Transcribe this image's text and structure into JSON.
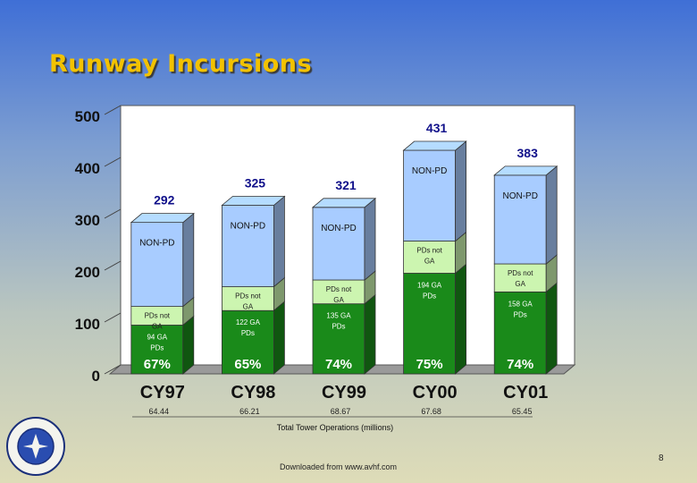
{
  "slide": {
    "title": "Runway Incursions",
    "footer": "Downloaded from www.avhf.com",
    "page_number": "8"
  },
  "colors": {
    "non_pd": "#a8ccff",
    "pd_not_ga": "#ccf5b0",
    "ga_pd": "#1a8a1a",
    "total_label": "#10108a",
    "pct_label": "#ffffff"
  },
  "chart_data": {
    "type": "bar",
    "stacked": true,
    "title": "",
    "ylabel": "",
    "xlabel": "Total Tower Operations (millions)",
    "ylim": [
      0,
      500
    ],
    "yticks": [
      0,
      100,
      200,
      300,
      400,
      500
    ],
    "grid": false,
    "categories": [
      "CY97",
      "CY98",
      "CY99",
      "CY00",
      "CY01"
    ],
    "sublabels": [
      "64.44",
      "66.21",
      "68.67",
      "67.68",
      "65.45"
    ],
    "totals": [
      292,
      325,
      321,
      431,
      383
    ],
    "percent_labels": [
      "67%",
      "65%",
      "74%",
      "75%",
      "74%"
    ],
    "series": [
      {
        "name": "GA PDs",
        "values": [
          94,
          122,
          135,
          194,
          158
        ],
        "segment_labels": [
          "94 GA PDs",
          "122 GA PDs",
          "135 GA PDs",
          "194 GA PDs",
          "158 GA PDs"
        ]
      },
      {
        "name": "PDs not GA",
        "values": [
          36,
          46,
          46,
          62,
          54
        ],
        "segment_labels": [
          "PDs not GA",
          "PDs not GA",
          "PDs not GA",
          "PDs not GA",
          "PDs not GA"
        ]
      },
      {
        "name": "NON-PD",
        "values": [
          162,
          157,
          140,
          175,
          171
        ],
        "segment_labels": [
          "NON-PD",
          "NON-PD",
          "NON-PD",
          "NON-PD",
          "NON-PD"
        ]
      }
    ]
  }
}
